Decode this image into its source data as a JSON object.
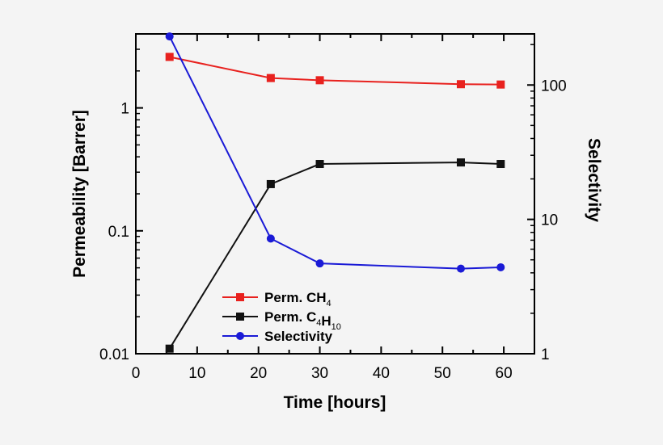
{
  "chart_data": {
    "type": "line",
    "xlabel": "Time [hours]",
    "ylabel_left": "Permeability [Barrer]",
    "ylabel_right": "Selectivity",
    "xlim": [
      0,
      65
    ],
    "ylim_left": [
      0.01,
      4
    ],
    "ylim_right": [
      1,
      240
    ],
    "yscale_left": "log",
    "yscale_right": "log",
    "x_ticks": [
      "0",
      "10",
      "20",
      "30",
      "40",
      "50",
      "60"
    ],
    "y_left_ticks": [
      "0.01",
      "0.1",
      "1"
    ],
    "y_right_ticks": [
      "1",
      "10",
      "100"
    ],
    "grid": false,
    "legend_position": "bottom-center",
    "series": [
      {
        "name": "Perm. CH4",
        "legend": {
          "base": "Perm. CH",
          "sub": "4",
          "tail": ""
        },
        "axis": "left",
        "color": "#e8211e",
        "marker": "square",
        "x": [
          5.5,
          22,
          30,
          53,
          59.5
        ],
        "y": [
          2.6,
          1.75,
          1.68,
          1.56,
          1.55
        ]
      },
      {
        "name": "Perm. C4H10",
        "legend": {
          "base": "Perm. C",
          "sub": "4",
          "mid": "H",
          "sub2": "10"
        },
        "axis": "left",
        "color": "#111111",
        "marker": "square",
        "x": [
          5.5,
          22,
          30,
          53,
          59.5
        ],
        "y": [
          0.011,
          0.24,
          0.35,
          0.36,
          0.35
        ]
      },
      {
        "name": "Selectivity",
        "legend": {
          "base": "Selectivity"
        },
        "axis": "right",
        "color": "#1a1ad6",
        "marker": "circle",
        "x": [
          5.5,
          22,
          30,
          53,
          59.5
        ],
        "y": [
          230,
          7.2,
          4.7,
          4.3,
          4.4
        ]
      }
    ]
  }
}
